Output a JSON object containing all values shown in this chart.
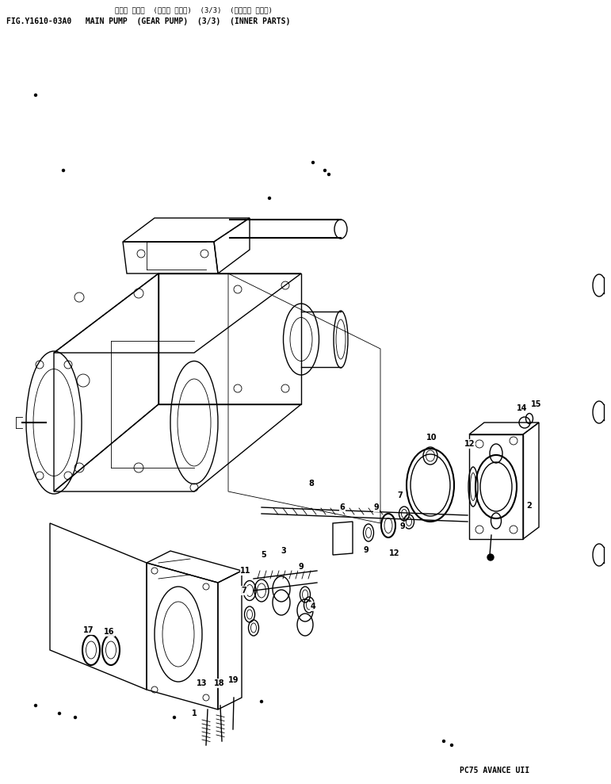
{
  "title_jp": "メイン ポンプ  (ギヤー ポンプ)  (3/3)  (インナー パーツ)",
  "title_en": "FIG.Y1610-03A0   MAIN PUMP  (GEAR PUMP)  (3/3)  (INNER PARTS)",
  "footer": "PC75 AVANCE UII",
  "bg": "#ffffff",
  "lc": "#000000",
  "fig_w": 7.71,
  "fig_h": 9.89,
  "dpi": 100
}
